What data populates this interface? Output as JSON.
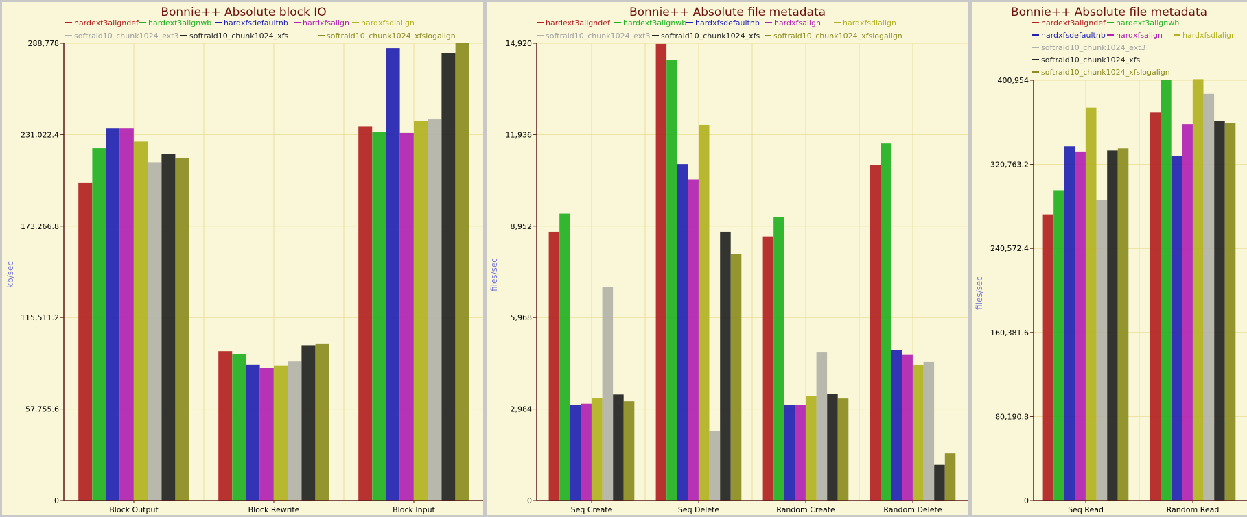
{
  "chart_data": [
    {
      "type": "bar",
      "title": "Bonnie++ Absolute block IO",
      "ylabel": "kb/sec",
      "xlabel": "",
      "ylim": [
        0,
        288778
      ],
      "yticks": [
        "0",
        "57,755.6",
        "115,511.2",
        "173,266.8",
        "231,022.4",
        "288,778"
      ],
      "categories": [
        "Block Output",
        "Block Rewrite",
        "Block Input"
      ],
      "series": [
        {
          "name": "hardext3aligndef",
          "color": "#b22222",
          "values": [
            200500,
            94300,
            236200
          ]
        },
        {
          "name": "hardext3alignwb",
          "color": "#22b022",
          "values": [
            222500,
            92300,
            232600
          ]
        },
        {
          "name": "hardxfsdefaultnb",
          "color": "#2222b2",
          "values": [
            235000,
            85800,
            285700
          ]
        },
        {
          "name": "hardxfsalign",
          "color": "#b022b2",
          "values": [
            235000,
            83700,
            232100
          ]
        },
        {
          "name": "hardxfsdlalign",
          "color": "#b2b222",
          "values": [
            226700,
            85000,
            239500
          ]
        },
        {
          "name": "softraid10_chunk1024_ext3",
          "color": "#b2b2a8",
          "values": [
            213700,
            87800,
            240700
          ]
        },
        {
          "name": "softraid10_chunk1024_xfs",
          "color": "#222222",
          "values": [
            218700,
            98100,
            282500
          ]
        },
        {
          "name": "softraid10_chunk1024_xfslogalign",
          "color": "#8c8c22",
          "values": [
            216200,
            99200,
            288778
          ]
        }
      ],
      "legend": "top",
      "grid": true
    },
    {
      "type": "bar",
      "title": "Bonnie++ Absolute file metadata",
      "ylabel": "files/sec",
      "xlabel": "",
      "ylim": [
        0,
        14920
      ],
      "yticks": [
        "0",
        "2,984",
        "5,968",
        "8,952",
        "11,936",
        "14,920"
      ],
      "categories": [
        "Seq Create",
        "Seq Delete",
        "Random Create",
        "Random Delete"
      ],
      "series": [
        {
          "name": "hardext3aligndef",
          "color": "#b22222",
          "values": [
            8770,
            14900,
            8620,
            10940
          ]
        },
        {
          "name": "hardext3alignwb",
          "color": "#22b022",
          "values": [
            9360,
            14360,
            9240,
            11650
          ]
        },
        {
          "name": "hardxfsdefaultnb",
          "color": "#2222b2",
          "values": [
            3130,
            10980,
            3130,
            4900
          ]
        },
        {
          "name": "hardxfsalign",
          "color": "#b022b2",
          "values": [
            3160,
            10480,
            3130,
            4750
          ]
        },
        {
          "name": "hardxfsdlalign",
          "color": "#b2b222",
          "values": [
            3350,
            12260,
            3400,
            4430
          ]
        },
        {
          "name": "softraid10_chunk1024_ext3",
          "color": "#b2b2a8",
          "values": [
            6960,
            2270,
            4830,
            4520
          ]
        },
        {
          "name": "softraid10_chunk1024_xfs",
          "color": "#222222",
          "values": [
            3460,
            8770,
            3480,
            1170
          ]
        },
        {
          "name": "softraid10_chunk1024_xfslogalign",
          "color": "#8c8c22",
          "values": [
            3240,
            8050,
            3330,
            1540
          ]
        }
      ],
      "legend": "top",
      "grid": true
    },
    {
      "type": "bar",
      "title": "Bonnie++ Absolute file metadata",
      "ylabel": "files/sec",
      "xlabel": "",
      "ylim": [
        0,
        400954
      ],
      "yticks": [
        "0",
        "80,190.8",
        "160,381.6",
        "240,572.4",
        "320,763.2",
        "400,954"
      ],
      "categories": [
        "Seq Read",
        "Random Read"
      ],
      "series": [
        {
          "name": "hardext3aligndef",
          "color": "#b22222",
          "values": [
            273000,
            370000
          ]
        },
        {
          "name": "hardext3alignwb",
          "color": "#22b022",
          "values": [
            296000,
            400954
          ]
        },
        {
          "name": "hardxfsdefaultnb",
          "color": "#2222b2",
          "values": [
            338000,
            329000
          ]
        },
        {
          "name": "hardxfsalign",
          "color": "#b022b2",
          "values": [
            333000,
            359000
          ]
        },
        {
          "name": "hardxfsdlalign",
          "color": "#b2b222",
          "values": [
            375000,
            402000
          ]
        },
        {
          "name": "softraid10_chunk1024_ext3",
          "color": "#b2b2a8",
          "values": [
            287000,
            388000
          ]
        },
        {
          "name": "softraid10_chunk1024_xfs",
          "color": "#222222",
          "values": [
            334000,
            362000
          ]
        },
        {
          "name": "softraid10_chunk1024_xfslogalign",
          "color": "#8c8c22",
          "values": [
            336000,
            360000
          ]
        }
      ],
      "legend": "top",
      "grid": true
    }
  ]
}
